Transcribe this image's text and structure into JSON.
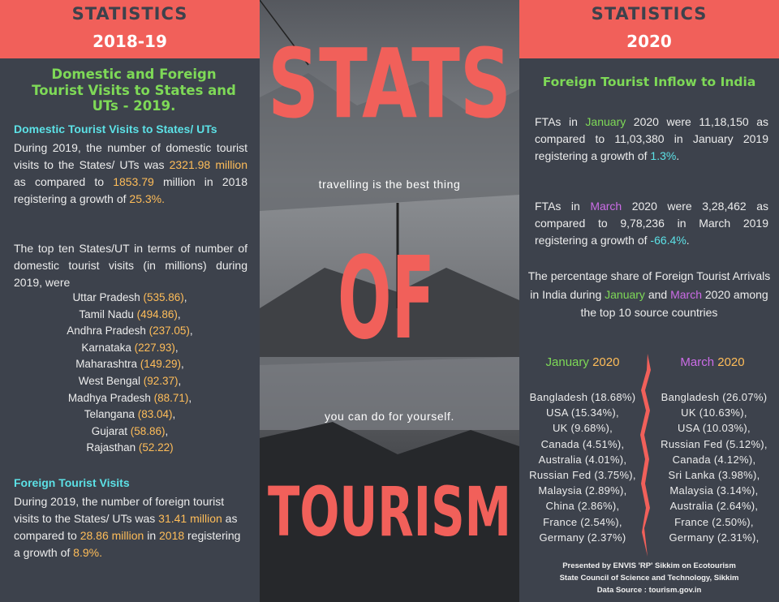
{
  "left": {
    "header": {
      "title": "STATISTICS",
      "year": "2018-19"
    },
    "heading": "Domestic and Foreign Tourist Visits to States and UTs - 2019.",
    "domestic_title": "Domestic Tourist Visits to States/ UTs",
    "domestic_text": [
      {
        "text": "During 2019, the number of domestic tourist visits to the States/ UTs was "
      },
      {
        "text": "2321.98 million",
        "color": "#ffbd59"
      },
      {
        "text": " as compared to "
      },
      {
        "text": "1853.79",
        "color": "#ffbd59"
      },
      {
        "text": " million in 2018 registering a growth of "
      },
      {
        "text": "25.3%.",
        "color": "#ffbd59"
      }
    ],
    "top_ten_intro": "The top ten States/UT in terms of number of domestic tourist visits (in millions) during 2019, were",
    "top_ten": [
      [
        {
          "text": "Uttar Pradesh "
        },
        {
          "text": "(535.86)",
          "color": "#ffbd59"
        },
        {
          "text": ","
        }
      ],
      [
        {
          "text": "Tamil Nadu "
        },
        {
          "text": "(494.86)",
          "color": "#ffbd59"
        },
        {
          "text": ","
        }
      ],
      [
        {
          "text": "Andhra Pradesh "
        },
        {
          "text": "(237.05)",
          "color": "#ffbd59"
        },
        {
          "text": ","
        }
      ],
      [
        {
          "text": "Karnataka "
        },
        {
          "text": "(227.93)",
          "color": "#ffbd59"
        },
        {
          "text": ","
        }
      ],
      [
        {
          "text": "Maharashtra "
        },
        {
          "text": "(149.29)",
          "color": "#ffbd59"
        },
        {
          "text": ","
        }
      ],
      [
        {
          "text": "West Bengal "
        },
        {
          "text": "(92.37)",
          "color": "#ffbd59"
        },
        {
          "text": ","
        }
      ],
      [
        {
          "text": "Madhya Pradesh "
        },
        {
          "text": "(88.71)",
          "color": "#ffbd59"
        },
        {
          "text": ","
        }
      ],
      [
        {
          "text": "Telangana "
        },
        {
          "text": "(83.04)",
          "color": "#ffbd59"
        },
        {
          "text": ","
        }
      ],
      [
        {
          "text": "Gujarat "
        },
        {
          "text": "(58.86)",
          "color": "#ffbd59"
        },
        {
          "text": ","
        }
      ],
      [
        {
          "text": "Rajasthan "
        },
        {
          "text": "(52.22)",
          "color": "#ffbd59"
        }
      ]
    ],
    "foreign_title": "Foreign Tourist Visits",
    "foreign_text": [
      {
        "text": "During 2019, the number of foreign tourist visits to the States/ UTs was "
      },
      {
        "text": "31.41 million",
        "color": "#ffbd59"
      },
      {
        "text": " as compared to "
      },
      {
        "text": "28.86 million",
        "color": "#ffbd59"
      },
      {
        "text": " in "
      },
      {
        "text": "2018",
        "color": "#ffbd59"
      },
      {
        "text": " registering a growth of "
      },
      {
        "text": "8.9%.",
        "color": "#ffbd59"
      }
    ]
  },
  "middle": {
    "words": [
      "STATS",
      "OF",
      "TOURISM"
    ],
    "tagline_1": "travelling is the best thing",
    "tagline_2": "you can do for yourself."
  },
  "right": {
    "header": {
      "title": "STATISTICS",
      "year": "2020"
    },
    "heading": "Foreign Tourist Inflow to India",
    "january_text": [
      {
        "text": "FTAs in "
      },
      {
        "text": "January",
        "color": "#7ed957"
      },
      {
        "text": " 2020 were 11,18,150 as compared to 11,03,380 in January 2019 registering a growth of "
      },
      {
        "text": "1.3%",
        "color": "#5ce1e6"
      },
      {
        "text": "."
      }
    ],
    "march_text": [
      {
        "text": "FTAs in "
      },
      {
        "text": "March",
        "color": "#cb6ce6"
      },
      {
        "text": " 2020 were 3,28,462 as compared to 9,78,236 in March 2019 registering a growth of "
      },
      {
        "text": "-66.4%",
        "color": "#5ce1e6"
      },
      {
        "text": "."
      }
    ],
    "share_text": [
      {
        "text": "The percentage share of Foreign Tourist Arrivals in India during "
      },
      {
        "text": "January",
        "color": "#7ed957"
      },
      {
        "text": " and "
      },
      {
        "text": "March",
        "color": "#cb6ce6"
      },
      {
        "text": " 2020 among the top 10 source countries"
      }
    ],
    "january_title": [
      {
        "text": "January ",
        "color": "#7ed957"
      },
      {
        "text": "2020",
        "color": "#ffbd59"
      }
    ],
    "march_title": [
      {
        "text": "March ",
        "color": "#cb6ce6"
      },
      {
        "text": "2020",
        "color": "#ffbd59"
      }
    ],
    "january_list": [
      "Bangladesh (18.68%)",
      "USA (15.34%),",
      "UK (9.68%),",
      "Canada (4.51%),",
      "Australia (4.01%),",
      "Russian Fed (3.75%),",
      "Malaysia (2.89%),",
      "China (2.86%),",
      "France (2.54%),",
      "Germany (2.37%)"
    ],
    "march_list": [
      "Bangladesh (26.07%)",
      "UK (10.63%),",
      "USA (10.03%),",
      "Russian Fed (5.12%),",
      "Canada (4.12%),",
      "Sri Lanka (3.98%),",
      "Malaysia (3.14%),",
      "Australia (2.64%),",
      "France (2.50%),",
      "Germany (2.31%),"
    ],
    "footer": [
      "Presented by ENVIS 'RP' Sikkim on Ecotourism",
      "State Council of Science and Technology, Sikkim",
      "Data Source : tourism.gov.in"
    ]
  }
}
